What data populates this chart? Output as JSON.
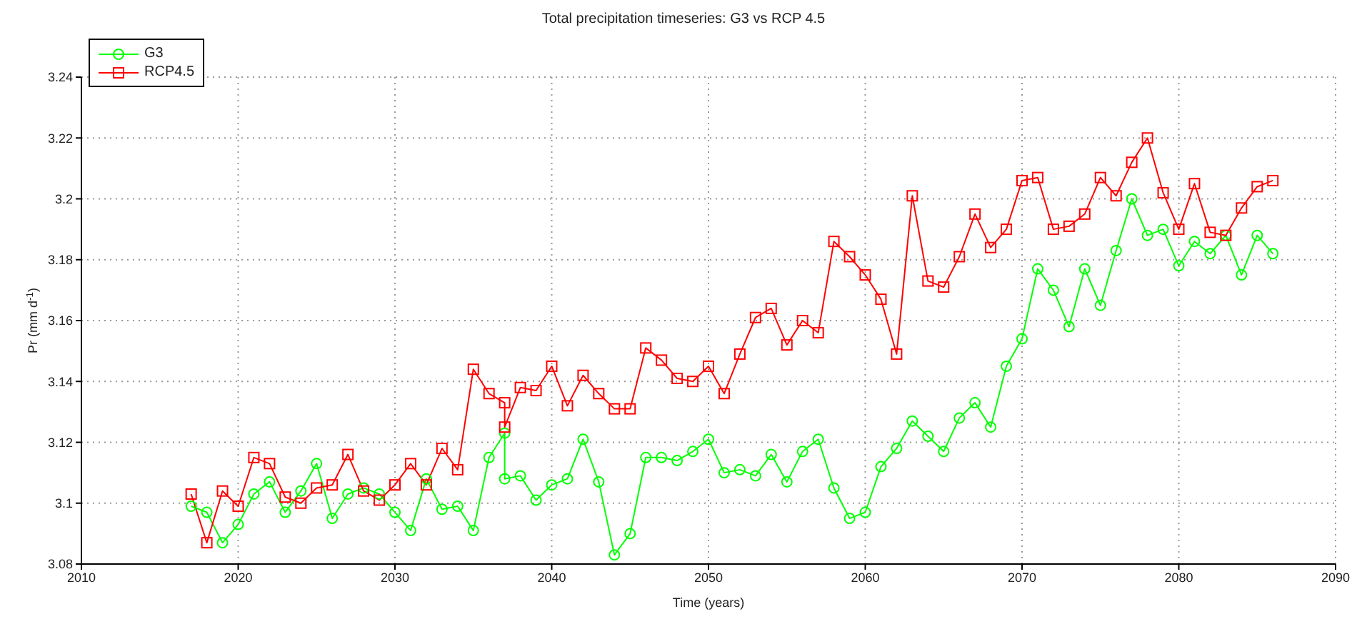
{
  "chart_data": {
    "type": "line",
    "title": "Total precipitation timeseries: G3 vs RCP 4.5",
    "xlabel": "Time (years)",
    "ylabel": "Pr (mm d$^{-1}$)",
    "xlim": [
      2010,
      2090
    ],
    "xticks": [
      2010,
      2020,
      2030,
      2040,
      2050,
      2060,
      2070,
      2080,
      2090
    ],
    "ylim": [
      3.08,
      3.24
    ],
    "yticks": [
      3.08,
      3.1,
      3.12,
      3.14,
      3.16,
      3.18,
      3.2,
      3.22,
      3.24
    ],
    "grid": true,
    "legend": "top left",
    "line_style": "solid",
    "x": [
      2017,
      2018,
      2019,
      2020,
      2021,
      2022,
      2023,
      2024,
      2025,
      2026,
      2027,
      2028,
      2029,
      2030,
      2031,
      2032,
      2033,
      2034,
      2035,
      2036,
      2037,
      2037,
      2038,
      2039,
      2040,
      2041,
      2042,
      2043,
      2044,
      2045,
      2046,
      2047,
      2048,
      2049,
      2050,
      2051,
      2052,
      2053,
      2054,
      2055,
      2056,
      2057,
      2058,
      2059,
      2060,
      2061,
      2062,
      2063,
      2064,
      2065,
      2066,
      2067,
      2068,
      2069,
      2070,
      2071,
      2072,
      2073,
      2074,
      2075,
      2076,
      2077,
      2078,
      2079,
      2080,
      2081,
      2082,
      2083,
      2084,
      2085,
      2086
    ],
    "series": [
      {
        "name": "G3",
        "color": "#00ff00",
        "marker": "circle",
        "values": [
          3.099,
          3.097,
          3.087,
          3.093,
          3.103,
          3.107,
          3.097,
          3.104,
          3.113,
          3.095,
          3.103,
          3.105,
          3.103,
          3.097,
          3.091,
          3.108,
          3.098,
          3.099,
          3.091,
          3.115,
          3.123,
          3.108,
          3.109,
          3.101,
          3.106,
          3.108,
          3.121,
          3.107,
          3.083,
          3.09,
          3.115,
          3.115,
          3.114,
          3.117,
          3.121,
          3.11,
          3.111,
          3.109,
          3.116,
          3.107,
          3.117,
          3.121,
          3.105,
          3.095,
          3.097,
          3.112,
          3.118,
          3.127,
          3.122,
          3.117,
          3.128,
          3.133,
          3.125,
          3.145,
          3.154,
          3.177,
          3.17,
          3.158,
          3.177,
          3.165,
          3.183,
          3.2,
          3.188,
          3.19,
          3.178,
          3.186,
          3.182,
          3.188,
          3.175,
          3.188,
          3.182
        ]
      },
      {
        "name": "RCP4.5",
        "color": "#ff0000",
        "marker": "square",
        "values": [
          3.103,
          3.087,
          3.104,
          3.099,
          3.115,
          3.113,
          3.102,
          3.1,
          3.105,
          3.106,
          3.116,
          3.104,
          3.101,
          3.106,
          3.113,
          3.106,
          3.118,
          3.111,
          3.144,
          3.136,
          3.133,
          3.125,
          3.138,
          3.137,
          3.145,
          3.132,
          3.142,
          3.136,
          3.131,
          3.131,
          3.151,
          3.147,
          3.141,
          3.14,
          3.145,
          3.136,
          3.149,
          3.161,
          3.164,
          3.152,
          3.16,
          3.156,
          3.186,
          3.181,
          3.175,
          3.167,
          3.149,
          3.201,
          3.173,
          3.171,
          3.181,
          3.195,
          3.184,
          3.19,
          3.206,
          3.207,
          3.19,
          3.191,
          3.195,
          3.207,
          3.201,
          3.212,
          3.22,
          3.202,
          3.19,
          3.205,
          3.189,
          3.188,
          3.197,
          3.204,
          3.206
        ]
      }
    ]
  }
}
